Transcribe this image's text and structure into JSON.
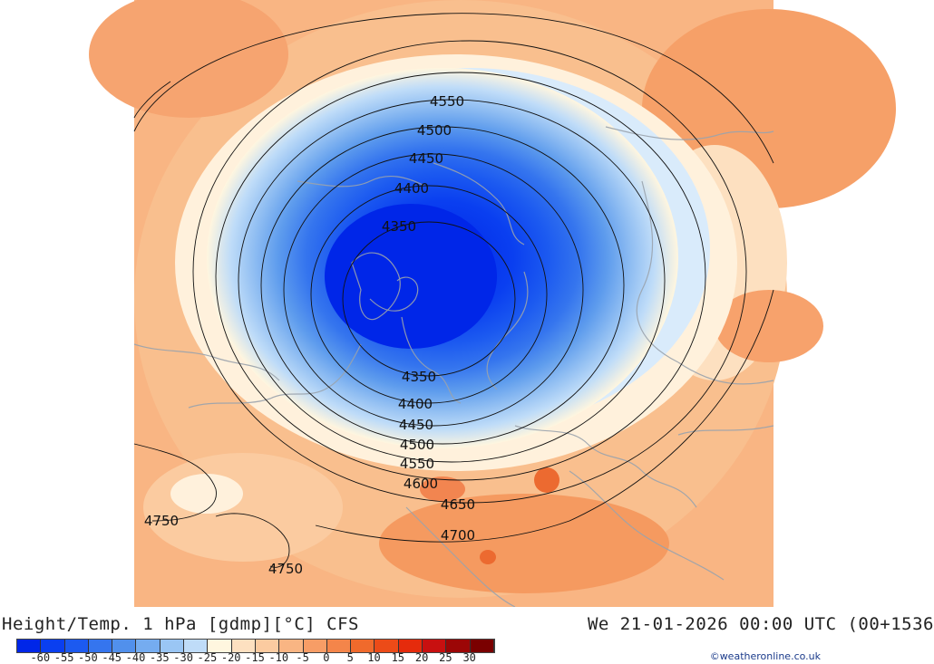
{
  "title_left": "Height/Temp. 1 hPa [gdmp][°C] CFS",
  "title_right": "We 21-01-2026 00:00 UTC (00+1536",
  "credit": "©weatheronline.co.uk",
  "colorbar": {
    "tick_labels": [
      "-60",
      "-55",
      "-50",
      "-45",
      "-40",
      "-35",
      "-30",
      "-25",
      "-20",
      "-15",
      "-10",
      "-5",
      "0",
      "5",
      "10",
      "15",
      "20",
      "25",
      "30"
    ],
    "colors": [
      "#0026e8",
      "#0a3ff0",
      "#1c5af0",
      "#3575ee",
      "#5190ec",
      "#75acf0",
      "#9ac6f4",
      "#bfdcf8",
      "#fff6df",
      "#fde0c0",
      "#fbcba0",
      "#f9b583",
      "#f79d66",
      "#f4854a",
      "#f06a2c",
      "#ec4b18",
      "#e52b0c",
      "#c81010",
      "#9c0606",
      "#7a0000"
    ]
  },
  "contours": {
    "labels": [
      "4350",
      "4400",
      "4450",
      "4500",
      "4550",
      "4600",
      "4650",
      "4700",
      "4750",
      "4750",
      "4350",
      "4400",
      "4450",
      "4500",
      "4550"
    ]
  },
  "icons": [
    "map-icon"
  ]
}
